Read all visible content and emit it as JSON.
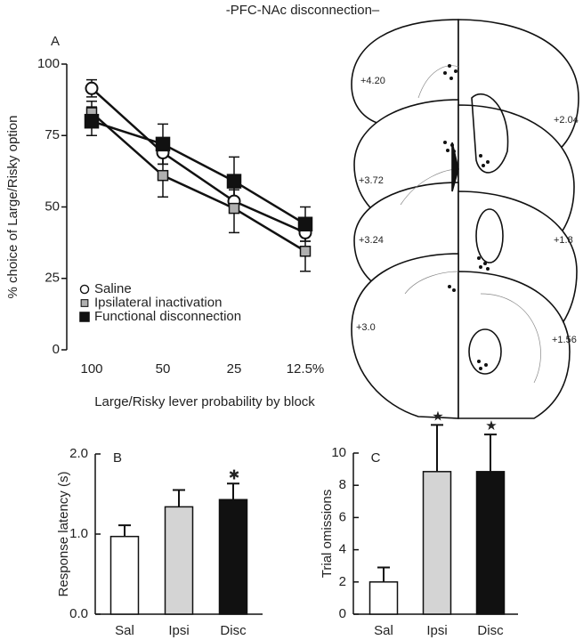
{
  "title": "-PFC-NAc disconnection–",
  "atlas_labels": [
    "+4.20",
    "+2.04",
    "+3.72",
    "+3.24",
    "+1.8",
    "+3.0",
    "+1.56"
  ],
  "chart_data": [
    {
      "type": "line",
      "panel": "A",
      "ylabel": "% choice of Large/Risky option",
      "xlabel": "Large/Risky lever probability by block",
      "categories": [
        "100",
        "50",
        "25",
        "12.5%"
      ],
      "ylim": [
        0,
        100
      ],
      "yticks": [
        0,
        25,
        50,
        75,
        100
      ],
      "legend": "lower left",
      "series": [
        {
          "name": "Saline",
          "color": "#ffffff",
          "marker": "circle",
          "values": [
            91.5,
            69,
            52,
            41
          ],
          "errors": [
            3,
            4,
            4,
            3
          ]
        },
        {
          "name": "Ipsilateral inactivation",
          "color": "#b0b0b0",
          "marker": "small-square",
          "values": [
            83,
            61,
            49.5,
            34.5
          ],
          "errors": [
            4,
            7.5,
            8.5,
            7
          ]
        },
        {
          "name": "Functional disconnection",
          "color": "#111111",
          "marker": "square",
          "values": [
            80,
            72,
            59,
            44
          ],
          "errors": [
            5,
            7,
            8.5,
            6
          ]
        }
      ]
    },
    {
      "type": "bar",
      "panel": "B",
      "ylabel": "Response latency (s)",
      "categories": [
        "Sal",
        "Ipsi",
        "Disc"
      ],
      "values": [
        0.97,
        1.34,
        1.43
      ],
      "errors": [
        0.14,
        0.21,
        0.2
      ],
      "colors": [
        "#ffffff",
        "#d4d4d4",
        "#111111"
      ],
      "ylim": [
        0,
        2
      ],
      "yticks": [
        {
          "value": 0,
          "label": "0.0"
        },
        {
          "value": 1,
          "label": "1.0"
        },
        {
          "value": 2,
          "label": "2.0"
        }
      ],
      "annotations": [
        null,
        null,
        "✱"
      ]
    },
    {
      "type": "bar",
      "panel": "C",
      "ylabel": "Trial omissions",
      "categories": [
        "Sal",
        "Ipsi",
        "Disc"
      ],
      "values": [
        2,
        8.85,
        8.85
      ],
      "errors": [
        0.9,
        2.9,
        2.3
      ],
      "colors": [
        "#ffffff",
        "#d4d4d4",
        "#111111"
      ],
      "ylim": [
        0,
        10
      ],
      "yticks": [
        0,
        2,
        4,
        6,
        8,
        10
      ],
      "annotations": [
        null,
        "★",
        "★"
      ]
    }
  ]
}
